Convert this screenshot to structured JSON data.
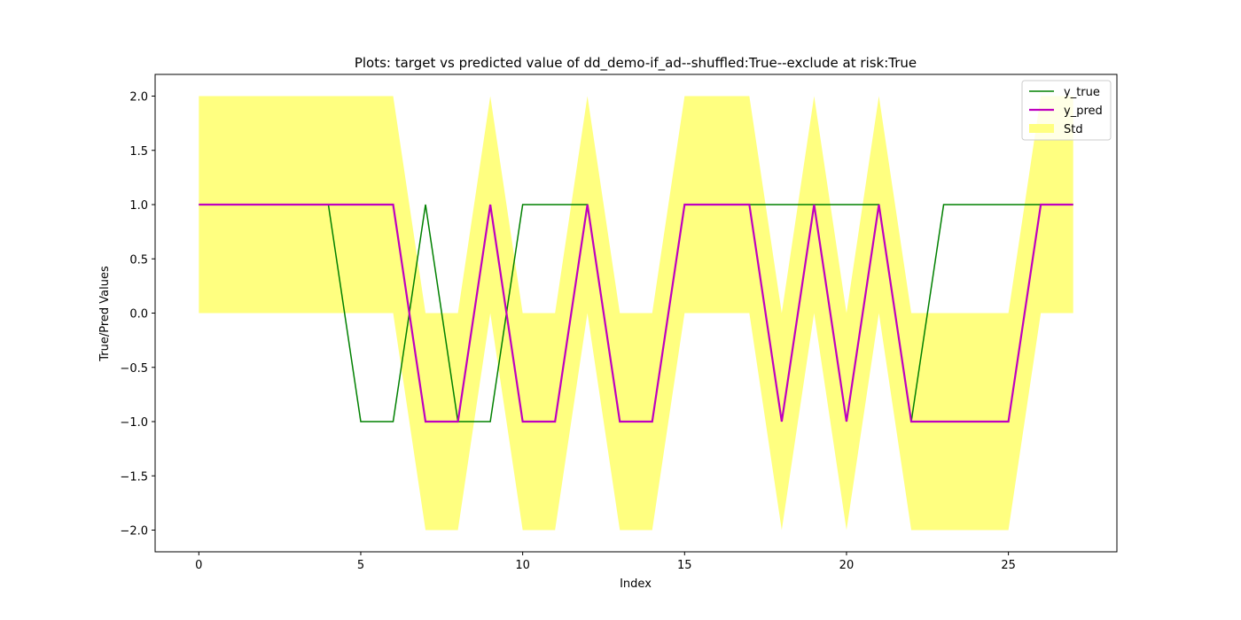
{
  "chart_data": {
    "type": "line",
    "title": "Plots: target vs predicted value of dd_demo-if_ad--shuffled:True--exclude at risk:True",
    "xlabel": "Index",
    "ylabel": "True/Pred Values",
    "xlim": [
      -1.35,
      28.35
    ],
    "ylim": [
      -2.2,
      2.2
    ],
    "x_ticks": [
      0,
      5,
      10,
      15,
      20,
      25
    ],
    "x_tick_labels": [
      "0",
      "5",
      "10",
      "15",
      "20",
      "25"
    ],
    "y_ticks": [
      -2.0,
      -1.5,
      -1.0,
      -0.5,
      0.0,
      0.5,
      1.0,
      1.5,
      2.0
    ],
    "y_tick_labels": [
      "−2.0",
      "−1.5",
      "−1.0",
      "−0.5",
      "0.0",
      "0.5",
      "1.0",
      "1.5",
      "2.0"
    ],
    "grid": false,
    "legend_position": "top-right",
    "x": [
      0,
      1,
      2,
      3,
      4,
      5,
      6,
      7,
      8,
      9,
      10,
      11,
      12,
      13,
      14,
      15,
      16,
      17,
      18,
      19,
      20,
      21,
      22,
      23,
      24,
      25,
      26,
      27
    ],
    "series": [
      {
        "name": "y_true",
        "color": "#008000",
        "values": [
          1,
          1,
          1,
          1,
          1,
          -1,
          -1,
          1,
          -1,
          -1,
          1,
          1,
          1,
          -1,
          -1,
          1,
          1,
          1,
          1,
          1,
          1,
          1,
          -1,
          1,
          1,
          1,
          1,
          1
        ]
      },
      {
        "name": "y_pred",
        "color": "#bf00bf",
        "values": [
          1,
          1,
          1,
          1,
          1,
          1,
          1,
          -1,
          -1,
          1,
          -1,
          -1,
          1,
          -1,
          -1,
          1,
          1,
          1,
          -1,
          1,
          -1,
          1,
          -1,
          -1,
          -1,
          -1,
          1,
          1
        ]
      }
    ],
    "band": {
      "name": "Std",
      "color": "#ffff80",
      "lower": [
        0,
        0,
        0,
        0,
        0,
        0,
        0,
        -2,
        -2,
        0,
        -2,
        -2,
        0,
        -2,
        -2,
        0,
        0,
        0,
        -2,
        0,
        -2,
        0,
        -2,
        -2,
        -2,
        -2,
        0,
        0
      ],
      "upper": [
        2,
        2,
        2,
        2,
        2,
        2,
        2,
        0,
        0,
        2,
        0,
        0,
        2,
        0,
        0,
        2,
        2,
        2,
        0,
        2,
        0,
        2,
        0,
        0,
        0,
        0,
        2,
        2
      ]
    }
  }
}
